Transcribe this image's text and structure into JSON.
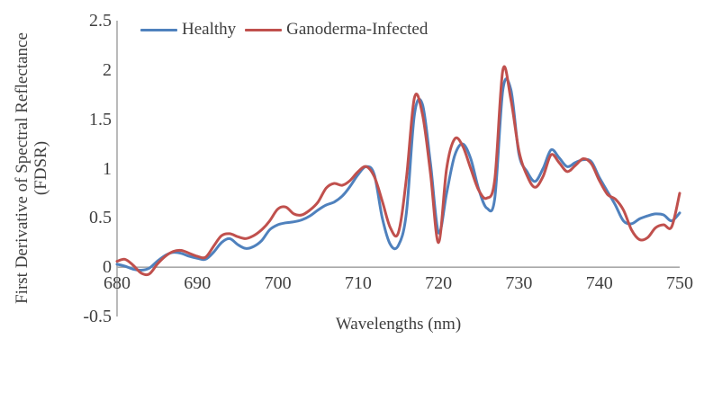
{
  "chart_data": {
    "type": "line",
    "title": "",
    "xlabel": "Wavelengths (nm)",
    "ylabel": "First Derivative of Spectral Reflectance (FDSR)",
    "ylabel_lines": [
      "First Derivative of Spectral Reflectance",
      "(FDSR)"
    ],
    "xlim": [
      680,
      750
    ],
    "ylim": [
      -0.5,
      2.5
    ],
    "x_ticks": [
      680,
      690,
      700,
      710,
      720,
      730,
      740,
      750
    ],
    "y_ticks": [
      2.5,
      2,
      1.5,
      1,
      0.5,
      0,
      -0.5
    ],
    "grid": false,
    "legend_position": "top",
    "line_style": "smooth",
    "axis_color": "#a9a9a9",
    "text_color": "#3f3f3f",
    "x": [
      680,
      681,
      682,
      683,
      684,
      685,
      686,
      687,
      688,
      689,
      690,
      691,
      692,
      693,
      694,
      695,
      696,
      697,
      698,
      699,
      700,
      701,
      702,
      703,
      704,
      705,
      706,
      707,
      708,
      709,
      710,
      711,
      712,
      713,
      714,
      715,
      716,
      717,
      718,
      719,
      720,
      721,
      722,
      723,
      724,
      725,
      726,
      727,
      728,
      729,
      730,
      731,
      732,
      733,
      734,
      735,
      736,
      737,
      738,
      739,
      740,
      741,
      742,
      743,
      744,
      745,
      746,
      747,
      748,
      749,
      750
    ],
    "series": [
      {
        "name": "Healthy",
        "color": "#4F81BD",
        "values": [
          0.03,
          0.01,
          -0.02,
          -0.03,
          -0.01,
          0.06,
          0.12,
          0.15,
          0.14,
          0.11,
          0.09,
          0.08,
          0.15,
          0.25,
          0.29,
          0.23,
          0.19,
          0.21,
          0.27,
          0.38,
          0.43,
          0.45,
          0.46,
          0.48,
          0.52,
          0.58,
          0.63,
          0.66,
          0.72,
          0.82,
          0.94,
          1.02,
          0.94,
          0.5,
          0.23,
          0.22,
          0.55,
          1.55,
          1.65,
          1.05,
          0.35,
          0.75,
          1.13,
          1.25,
          1.1,
          0.79,
          0.6,
          0.7,
          1.8,
          1.8,
          1.15,
          0.97,
          0.87,
          1.0,
          1.19,
          1.11,
          1.02,
          1.06,
          1.09,
          1.07,
          0.91,
          0.77,
          0.63,
          0.47,
          0.44,
          0.49,
          0.52,
          0.54,
          0.53,
          0.47,
          0.55
        ]
      },
      {
        "name": "Ganoderma-Infected",
        "color": "#C0504D",
        "values": [
          0.06,
          0.08,
          0.02,
          -0.06,
          -0.07,
          0.03,
          0.11,
          0.16,
          0.17,
          0.14,
          0.11,
          0.1,
          0.21,
          0.32,
          0.34,
          0.31,
          0.29,
          0.32,
          0.38,
          0.47,
          0.59,
          0.61,
          0.54,
          0.53,
          0.58,
          0.66,
          0.8,
          0.85,
          0.83,
          0.88,
          0.97,
          1.02,
          0.92,
          0.67,
          0.4,
          0.35,
          0.9,
          1.72,
          1.55,
          0.95,
          0.25,
          1.0,
          1.3,
          1.23,
          1.0,
          0.78,
          0.7,
          0.89,
          2.0,
          1.7,
          1.18,
          0.93,
          0.81,
          0.92,
          1.14,
          1.06,
          0.97,
          1.03,
          1.1,
          1.05,
          0.88,
          0.74,
          0.69,
          0.58,
          0.38,
          0.28,
          0.3,
          0.4,
          0.43,
          0.41,
          0.75
        ]
      }
    ]
  }
}
